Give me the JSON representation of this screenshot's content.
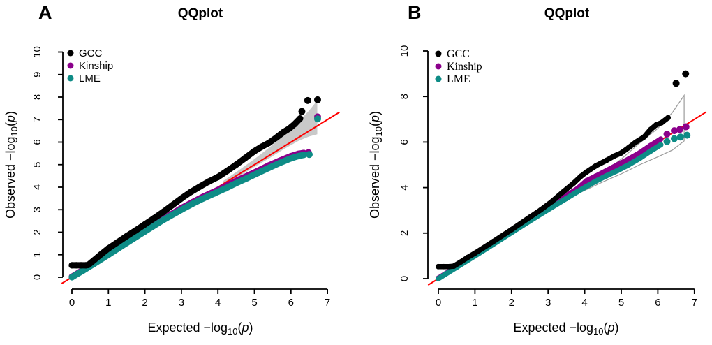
{
  "figure": {
    "background": "#FFFFFF",
    "colors": {
      "gcc": "#000000",
      "kinship": "#8B008B",
      "lme": "#0E8C86",
      "reference_line": "#FF0000",
      "band_fill": "#C9C9C9",
      "band_outline": "#9B9B9B",
      "axis": "#000000"
    }
  },
  "chart_data": [
    {
      "type": "scatter",
      "panel_label": "A",
      "title": "QQplot",
      "xlabel": "Expected −log10(p)",
      "ylabel": "Observed −log10(p)",
      "xlabel_parts": {
        "text": "Expected  −log",
        "sub": "10",
        "open": "(",
        "variable": "p",
        "close": ")"
      },
      "ylabel_parts": {
        "text": "Observed  −log",
        "sub": "10",
        "open": "(",
        "variable": "p",
        "close": ")"
      },
      "xlim": [
        0,
        7
      ],
      "ylim": [
        0,
        10
      ],
      "xticks": [
        0,
        1,
        2,
        3,
        4,
        5,
        6,
        7
      ],
      "yticks": [
        0,
        1,
        2,
        3,
        4,
        5,
        6,
        7,
        8,
        9,
        10
      ],
      "grid": false,
      "legend": {
        "position": "top-left",
        "font": "sans",
        "items": [
          {
            "label": "GCC",
            "color": "#000000"
          },
          {
            "label": "Kinship",
            "color": "#8B008B"
          },
          {
            "label": "LME",
            "color": "#0E8C86"
          }
        ]
      },
      "reference_line": {
        "color": "#FF0000",
        "x": [
          -0.28,
          7.33
        ],
        "y": [
          -0.28,
          7.33
        ]
      },
      "confidence_band": {
        "style": "filled",
        "fill": "#C9C9C9",
        "upper": [
          [
            4.15,
            4.28
          ],
          [
            4.6,
            4.78
          ],
          [
            5,
            5.25
          ],
          [
            5.4,
            5.75
          ],
          [
            5.8,
            6.3
          ],
          [
            6.2,
            6.9
          ],
          [
            6.5,
            7.4
          ],
          [
            6.72,
            7.85
          ]
        ],
        "lower": [
          [
            4.15,
            4.06
          ],
          [
            4.6,
            4.5
          ],
          [
            5,
            4.9
          ],
          [
            5.4,
            5.28
          ],
          [
            5.8,
            5.68
          ],
          [
            6.2,
            6.05
          ],
          [
            6.5,
            6.25
          ],
          [
            6.72,
            6.35
          ]
        ]
      },
      "series": [
        {
          "name": "GCC",
          "color": "#000000",
          "points": [
            [
              0,
              0.53
            ],
            [
              0.12,
              0.53
            ],
            [
              0.25,
              0.53
            ],
            [
              0.38,
              0.53
            ],
            [
              0.45,
              0.55
            ],
            [
              0.6,
              0.75
            ],
            [
              0.8,
              1.02
            ],
            [
              1,
              1.28
            ],
            [
              1.25,
              1.55
            ],
            [
              1.5,
              1.82
            ],
            [
              1.75,
              2.08
            ],
            [
              2,
              2.35
            ],
            [
              2.25,
              2.62
            ],
            [
              2.5,
              2.9
            ],
            [
              2.75,
              3.2
            ],
            [
              3,
              3.5
            ],
            [
              3.25,
              3.78
            ],
            [
              3.5,
              4.02
            ],
            [
              3.75,
              4.25
            ],
            [
              4,
              4.45
            ],
            [
              4.25,
              4.72
            ],
            [
              4.5,
              5.0
            ],
            [
              4.75,
              5.3
            ],
            [
              5,
              5.6
            ],
            [
              5.2,
              5.8
            ],
            [
              5.4,
              5.97
            ],
            [
              5.6,
              6.2
            ],
            [
              5.8,
              6.45
            ],
            [
              5.95,
              6.6
            ],
            [
              6.1,
              6.8
            ],
            [
              6.25,
              7.05
            ]
          ],
          "outliers": [
            [
              6.3,
              7.36
            ],
            [
              6.46,
              7.85
            ],
            [
              6.73,
              7.88
            ]
          ]
        },
        {
          "name": "Kinship",
          "color": "#8B008B",
          "points": [
            [
              0,
              0.02
            ],
            [
              0.3,
              0.32
            ],
            [
              0.6,
              0.62
            ],
            [
              1,
              1.03
            ],
            [
              1.5,
              1.55
            ],
            [
              2,
              2.07
            ],
            [
              2.5,
              2.58
            ],
            [
              3,
              3.07
            ],
            [
              3.3,
              3.33
            ],
            [
              3.6,
              3.58
            ],
            [
              3.9,
              3.8
            ],
            [
              4.2,
              4.03
            ],
            [
              4.5,
              4.28
            ],
            [
              4.8,
              4.5
            ],
            [
              5.1,
              4.73
            ],
            [
              5.4,
              4.97
            ],
            [
              5.7,
              5.18
            ],
            [
              6,
              5.38
            ],
            [
              6.2,
              5.48
            ],
            [
              6.35,
              5.52
            ]
          ],
          "outliers": [
            [
              6.48,
              5.53
            ],
            [
              6.73,
              7.12
            ]
          ]
        },
        {
          "name": "LME",
          "color": "#0E8C86",
          "points": [
            [
              0,
              0
            ],
            [
              0.3,
              0.29
            ],
            [
              0.6,
              0.59
            ],
            [
              1,
              1.0
            ],
            [
              1.5,
              1.52
            ],
            [
              2,
              2.03
            ],
            [
              2.5,
              2.54
            ],
            [
              3,
              3.0
            ],
            [
              3.3,
              3.26
            ],
            [
              3.6,
              3.5
            ],
            [
              3.9,
              3.72
            ],
            [
              4.2,
              3.94
            ],
            [
              4.5,
              4.18
            ],
            [
              4.8,
              4.4
            ],
            [
              5.1,
              4.63
            ],
            [
              5.4,
              4.86
            ],
            [
              5.7,
              5.08
            ],
            [
              6,
              5.28
            ],
            [
              6.2,
              5.38
            ],
            [
              6.35,
              5.43
            ]
          ],
          "outliers": [
            [
              6.5,
              5.45
            ],
            [
              6.73,
              7.03
            ]
          ]
        }
      ]
    },
    {
      "type": "scatter",
      "panel_label": "B",
      "title": "QQplot",
      "xlabel": "Expected −log10(p)",
      "ylabel": "Observed −log10(p)",
      "xlabel_parts": {
        "text": "Expected  −log",
        "sub": "10",
        "open": "(",
        "variable": "p",
        "close": ")"
      },
      "ylabel_parts": {
        "text": "Observed  −log",
        "sub": "10",
        "open": "(",
        "variable": "p",
        "close": ")"
      },
      "xlim": [
        0,
        7
      ],
      "ylim": [
        0,
        10
      ],
      "xticks": [
        0,
        1,
        2,
        3,
        4,
        5,
        6,
        7
      ],
      "yticks": [
        0,
        2,
        4,
        6,
        8,
        10
      ],
      "grid": false,
      "legend": {
        "position": "top-left",
        "font": "serif",
        "items": [
          {
            "label": "GCC",
            "color": "#000000"
          },
          {
            "label": "Kinship",
            "color": "#8B008B"
          },
          {
            "label": "LME",
            "color": "#0E8C86"
          }
        ]
      },
      "reference_line": {
        "color": "#FF0000",
        "x": [
          -0.28,
          7.33
        ],
        "y": [
          -0.28,
          7.33
        ]
      },
      "confidence_band": {
        "style": "outline",
        "outline": "#9B9B9B",
        "upper": [
          [
            3.9,
            4.0
          ],
          [
            4.5,
            4.65
          ],
          [
            5,
            5.25
          ],
          [
            5.5,
            5.95
          ],
          [
            6,
            6.6
          ],
          [
            6.4,
            7.3
          ],
          [
            6.72,
            8.05
          ]
        ],
        "lower": [
          [
            3.9,
            3.8
          ],
          [
            4.5,
            4.25
          ],
          [
            5,
            4.6
          ],
          [
            5.5,
            5.0
          ],
          [
            6,
            5.35
          ],
          [
            6.4,
            5.65
          ],
          [
            6.72,
            6.05
          ]
        ]
      },
      "series": [
        {
          "name": "GCC",
          "color": "#000000",
          "points": [
            [
              0,
              0.53
            ],
            [
              0.15,
              0.53
            ],
            [
              0.3,
              0.53
            ],
            [
              0.42,
              0.55
            ],
            [
              0.6,
              0.72
            ],
            [
              0.8,
              0.93
            ],
            [
              1,
              1.12
            ],
            [
              1.5,
              1.63
            ],
            [
              2,
              2.15
            ],
            [
              2.5,
              2.7
            ],
            [
              2.8,
              3.02
            ],
            [
              3.1,
              3.38
            ],
            [
              3.4,
              3.8
            ],
            [
              3.7,
              4.2
            ],
            [
              3.9,
              4.5
            ],
            [
              4.05,
              4.68
            ],
            [
              4.3,
              4.95
            ],
            [
              4.6,
              5.2
            ],
            [
              4.8,
              5.38
            ],
            [
              5,
              5.52
            ],
            [
              5.2,
              5.75
            ],
            [
              5.4,
              6.0
            ],
            [
              5.63,
              6.23
            ],
            [
              5.8,
              6.55
            ],
            [
              5.95,
              6.75
            ],
            [
              6.1,
              6.85
            ],
            [
              6.28,
              7.07
            ]
          ],
          "outliers": [
            [
              6.5,
              8.58
            ],
            [
              6.76,
              9.0
            ]
          ]
        },
        {
          "name": "Kinship",
          "color": "#8B008B",
          "points": [
            [
              0,
              0.02
            ],
            [
              0.5,
              0.52
            ],
            [
              1,
              1.03
            ],
            [
              1.5,
              1.55
            ],
            [
              2,
              2.08
            ],
            [
              2.5,
              2.6
            ],
            [
              3,
              3.12
            ],
            [
              3.5,
              3.65
            ],
            [
              3.8,
              3.95
            ],
            [
              4.05,
              4.3
            ],
            [
              4.3,
              4.5
            ],
            [
              4.6,
              4.75
            ],
            [
              4.9,
              5.0
            ],
            [
              5.2,
              5.25
            ],
            [
              5.5,
              5.52
            ],
            [
              5.8,
              5.85
            ],
            [
              6.08,
              6.13
            ]
          ],
          "outliers": [
            [
              6.25,
              6.35
            ],
            [
              6.45,
              6.5
            ],
            [
              6.6,
              6.55
            ],
            [
              6.77,
              6.67
            ]
          ]
        },
        {
          "name": "LME",
          "color": "#0E8C86",
          "points": [
            [
              0,
              0
            ],
            [
              0.5,
              0.5
            ],
            [
              1,
              1.0
            ],
            [
              1.5,
              1.51
            ],
            [
              2,
              2.02
            ],
            [
              2.5,
              2.53
            ],
            [
              3,
              3.03
            ],
            [
              3.5,
              3.52
            ],
            [
              3.8,
              3.82
            ],
            [
              4.05,
              4.05
            ],
            [
              4.3,
              4.28
            ],
            [
              4.6,
              4.52
            ],
            [
              4.9,
              4.75
            ],
            [
              5.2,
              5.0
            ],
            [
              5.5,
              5.28
            ],
            [
              5.8,
              5.6
            ],
            [
              6.08,
              5.88
            ]
          ],
          "outliers": [
            [
              6.25,
              6.02
            ],
            [
              6.45,
              6.15
            ],
            [
              6.62,
              6.22
            ],
            [
              6.8,
              6.3
            ]
          ]
        }
      ]
    }
  ]
}
